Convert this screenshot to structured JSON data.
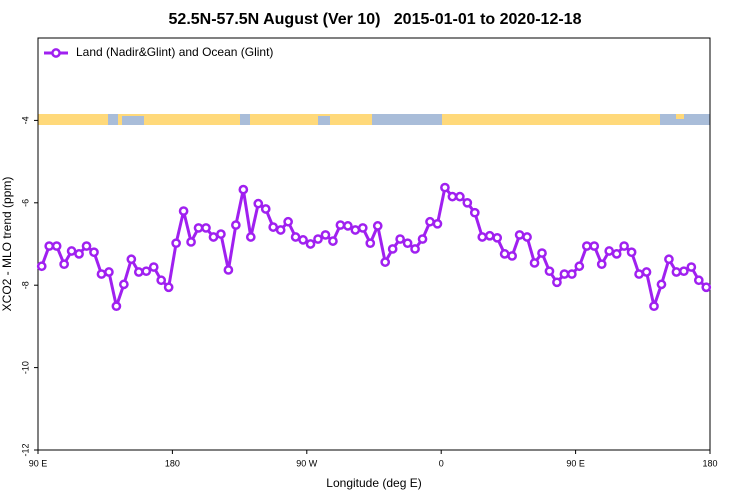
{
  "chart_data": {
    "type": "line",
    "title": "52.5N-57.5N August (Ver 10)   2015-01-01 to 2020-12-18",
    "x_label": "Longitude (deg E)",
    "y_label": "XCO2 - MLO trend (ppm)",
    "x": [
      92.5,
      97.5,
      102.5,
      107.5,
      112.5,
      117.5,
      122.5,
      127.5,
      132.5,
      137.5,
      142.5,
      147.5,
      152.5,
      157.5,
      162.5,
      167.5,
      172.5,
      177.5,
      182.5,
      187.5,
      192.5,
      197.5,
      202.5,
      207.5,
      212.5,
      217.5,
      222.5,
      227.5,
      232.5,
      237.5,
      242.5,
      247.5,
      252.5,
      257.5,
      262.5,
      267.5,
      272.5,
      277.5,
      282.5,
      287.5,
      292.5,
      297.5,
      302.5,
      307.5,
      312.5,
      317.5,
      322.5,
      327.5,
      332.5,
      337.5,
      342.5,
      347.5,
      352.5,
      357.5,
      362.5,
      367.5,
      372.5,
      377.5,
      382.5,
      387.5,
      392.5,
      397.5,
      402.5,
      407.5,
      412.5,
      417.5,
      422.5,
      427.5,
      432.5,
      437.5,
      442.5,
      447.5,
      452.5,
      457.5,
      462.5,
      467.5,
      472.5,
      477.5,
      482.5,
      487.5,
      492.5,
      497.5,
      502.5,
      507.5,
      512.5,
      517.5,
      522.5,
      527.5,
      532.5,
      537.5
    ],
    "series": [
      {
        "name": "Land (Nadir&Glint) and Ocean (Glint)",
        "color": "#a020f0",
        "values": [
          -7.54,
          -7.05,
          -7.05,
          -7.49,
          -7.17,
          -7.24,
          -7.05,
          -7.2,
          -7.73,
          -7.68,
          -8.51,
          -7.98,
          -7.37,
          -7.68,
          -7.66,
          -7.56,
          -7.88,
          -8.05,
          -6.98,
          -6.2,
          -6.95,
          -6.61,
          -6.61,
          -6.83,
          -6.76,
          -7.63,
          -6.54,
          -5.68,
          -6.83,
          -6.02,
          -6.15,
          -6.59,
          -6.66,
          -6.46,
          -6.83,
          -6.9,
          -7.0,
          -6.88,
          -6.78,
          -6.93,
          -6.54,
          -6.56,
          -6.66,
          -6.61,
          -6.98,
          -6.56,
          -7.44,
          -7.12,
          -6.88,
          -6.98,
          -7.12,
          -6.88,
          -6.46,
          -6.51,
          -5.63,
          -5.85,
          -5.85,
          -6.0,
          -6.24,
          -6.83,
          -6.8,
          -6.85,
          -7.24,
          -7.29,
          -6.78,
          -6.83,
          -7.46,
          -7.22,
          -7.66,
          -7.93,
          -7.73,
          -7.73,
          -7.54,
          -7.05,
          -7.05,
          -7.49,
          -7.17,
          -7.24,
          -7.05,
          -7.2,
          -7.73,
          -7.68,
          -8.51,
          -7.98,
          -7.37,
          -7.68,
          -7.66,
          -7.56,
          -7.88,
          -8.05
        ]
      }
    ],
    "xlim": [
      90,
      540
    ],
    "xticks": [
      {
        "value": 90,
        "label": "90 E"
      },
      180,
      {
        "value": 270,
        "label": "90 W"
      },
      {
        "value": 360,
        "label": "0"
      },
      {
        "value": 450,
        "label": "90 E"
      },
      {
        "value": 540,
        "label": "180"
      }
    ],
    "ylim": [
      -12,
      -2
    ],
    "yticks": [
      -12,
      -10,
      -8,
      -6,
      -4
    ],
    "legend": "upper left"
  }
}
